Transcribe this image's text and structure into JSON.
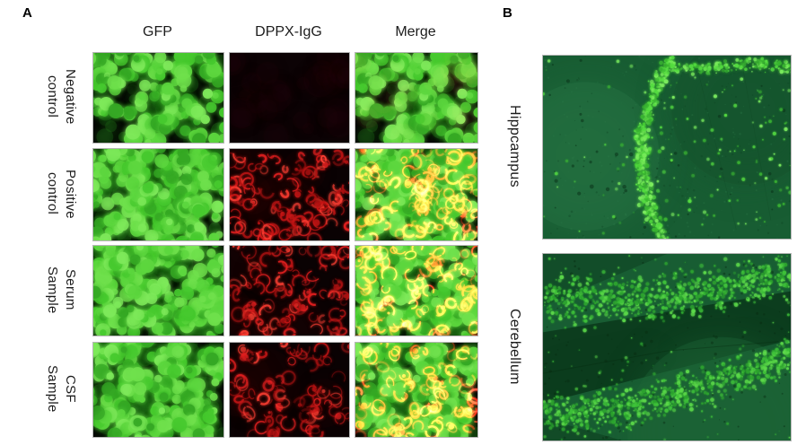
{
  "panel_a": {
    "label": "A",
    "columns": [
      "GFP",
      "DPPX-IgG",
      "Merge"
    ],
    "rows": [
      {
        "label": "Negative\ncontrol",
        "gfp": "green transfected cells",
        "igg": "no staining (black)",
        "merge": "green only"
      },
      {
        "label": "Positive\ncontrol",
        "gfp": "green transfected cells",
        "igg": "bright red membrane rings",
        "merge": "yellow-green overlap"
      },
      {
        "label": "Serum\nSample",
        "gfp": "green transfected cells",
        "igg": "red membrane rings",
        "merge": "yellow-green overlap"
      },
      {
        "label": "CSF\nSample",
        "gfp": "green transfected cells",
        "igg": "red membrane rings",
        "merge": "yellow-green overlap"
      }
    ]
  },
  "panel_b": {
    "label": "B",
    "sections": [
      {
        "label": "Hippcampus",
        "description": "green tissue with curved band of bright granule cells"
      },
      {
        "label": "Cerebellum",
        "description": "green tissue with two diagonal bright granular layers"
      }
    ]
  },
  "palette": {
    "background": "#ffffff",
    "text": "#1c1c1c",
    "image_border": "#b6b6b6",
    "gfp_bg": "#050a04",
    "gfp_dim": "#1d6616",
    "gfp_greens": [
      "#46c92e",
      "#5cd63e",
      "#6fe04c",
      "#35a824",
      "#7ee95a"
    ],
    "igg_bg": "#0a0203",
    "igg_reds": [
      "#e32020",
      "#c81616",
      "#ff4034",
      "#b01212"
    ],
    "neg_bg": "#0c0305",
    "neg_blob": "#26090d",
    "tissue_bg": "#185d33",
    "tissue_bg_dark": "#0b3a1c",
    "tissue_bg_light": "#2b7c4a",
    "tissue_dots": [
      "#55dd41",
      "#7dee5f",
      "#3ab332"
    ],
    "cereb_dots": [
      "#3fc23a",
      "#5cd94a",
      "#2da32f"
    ]
  }
}
